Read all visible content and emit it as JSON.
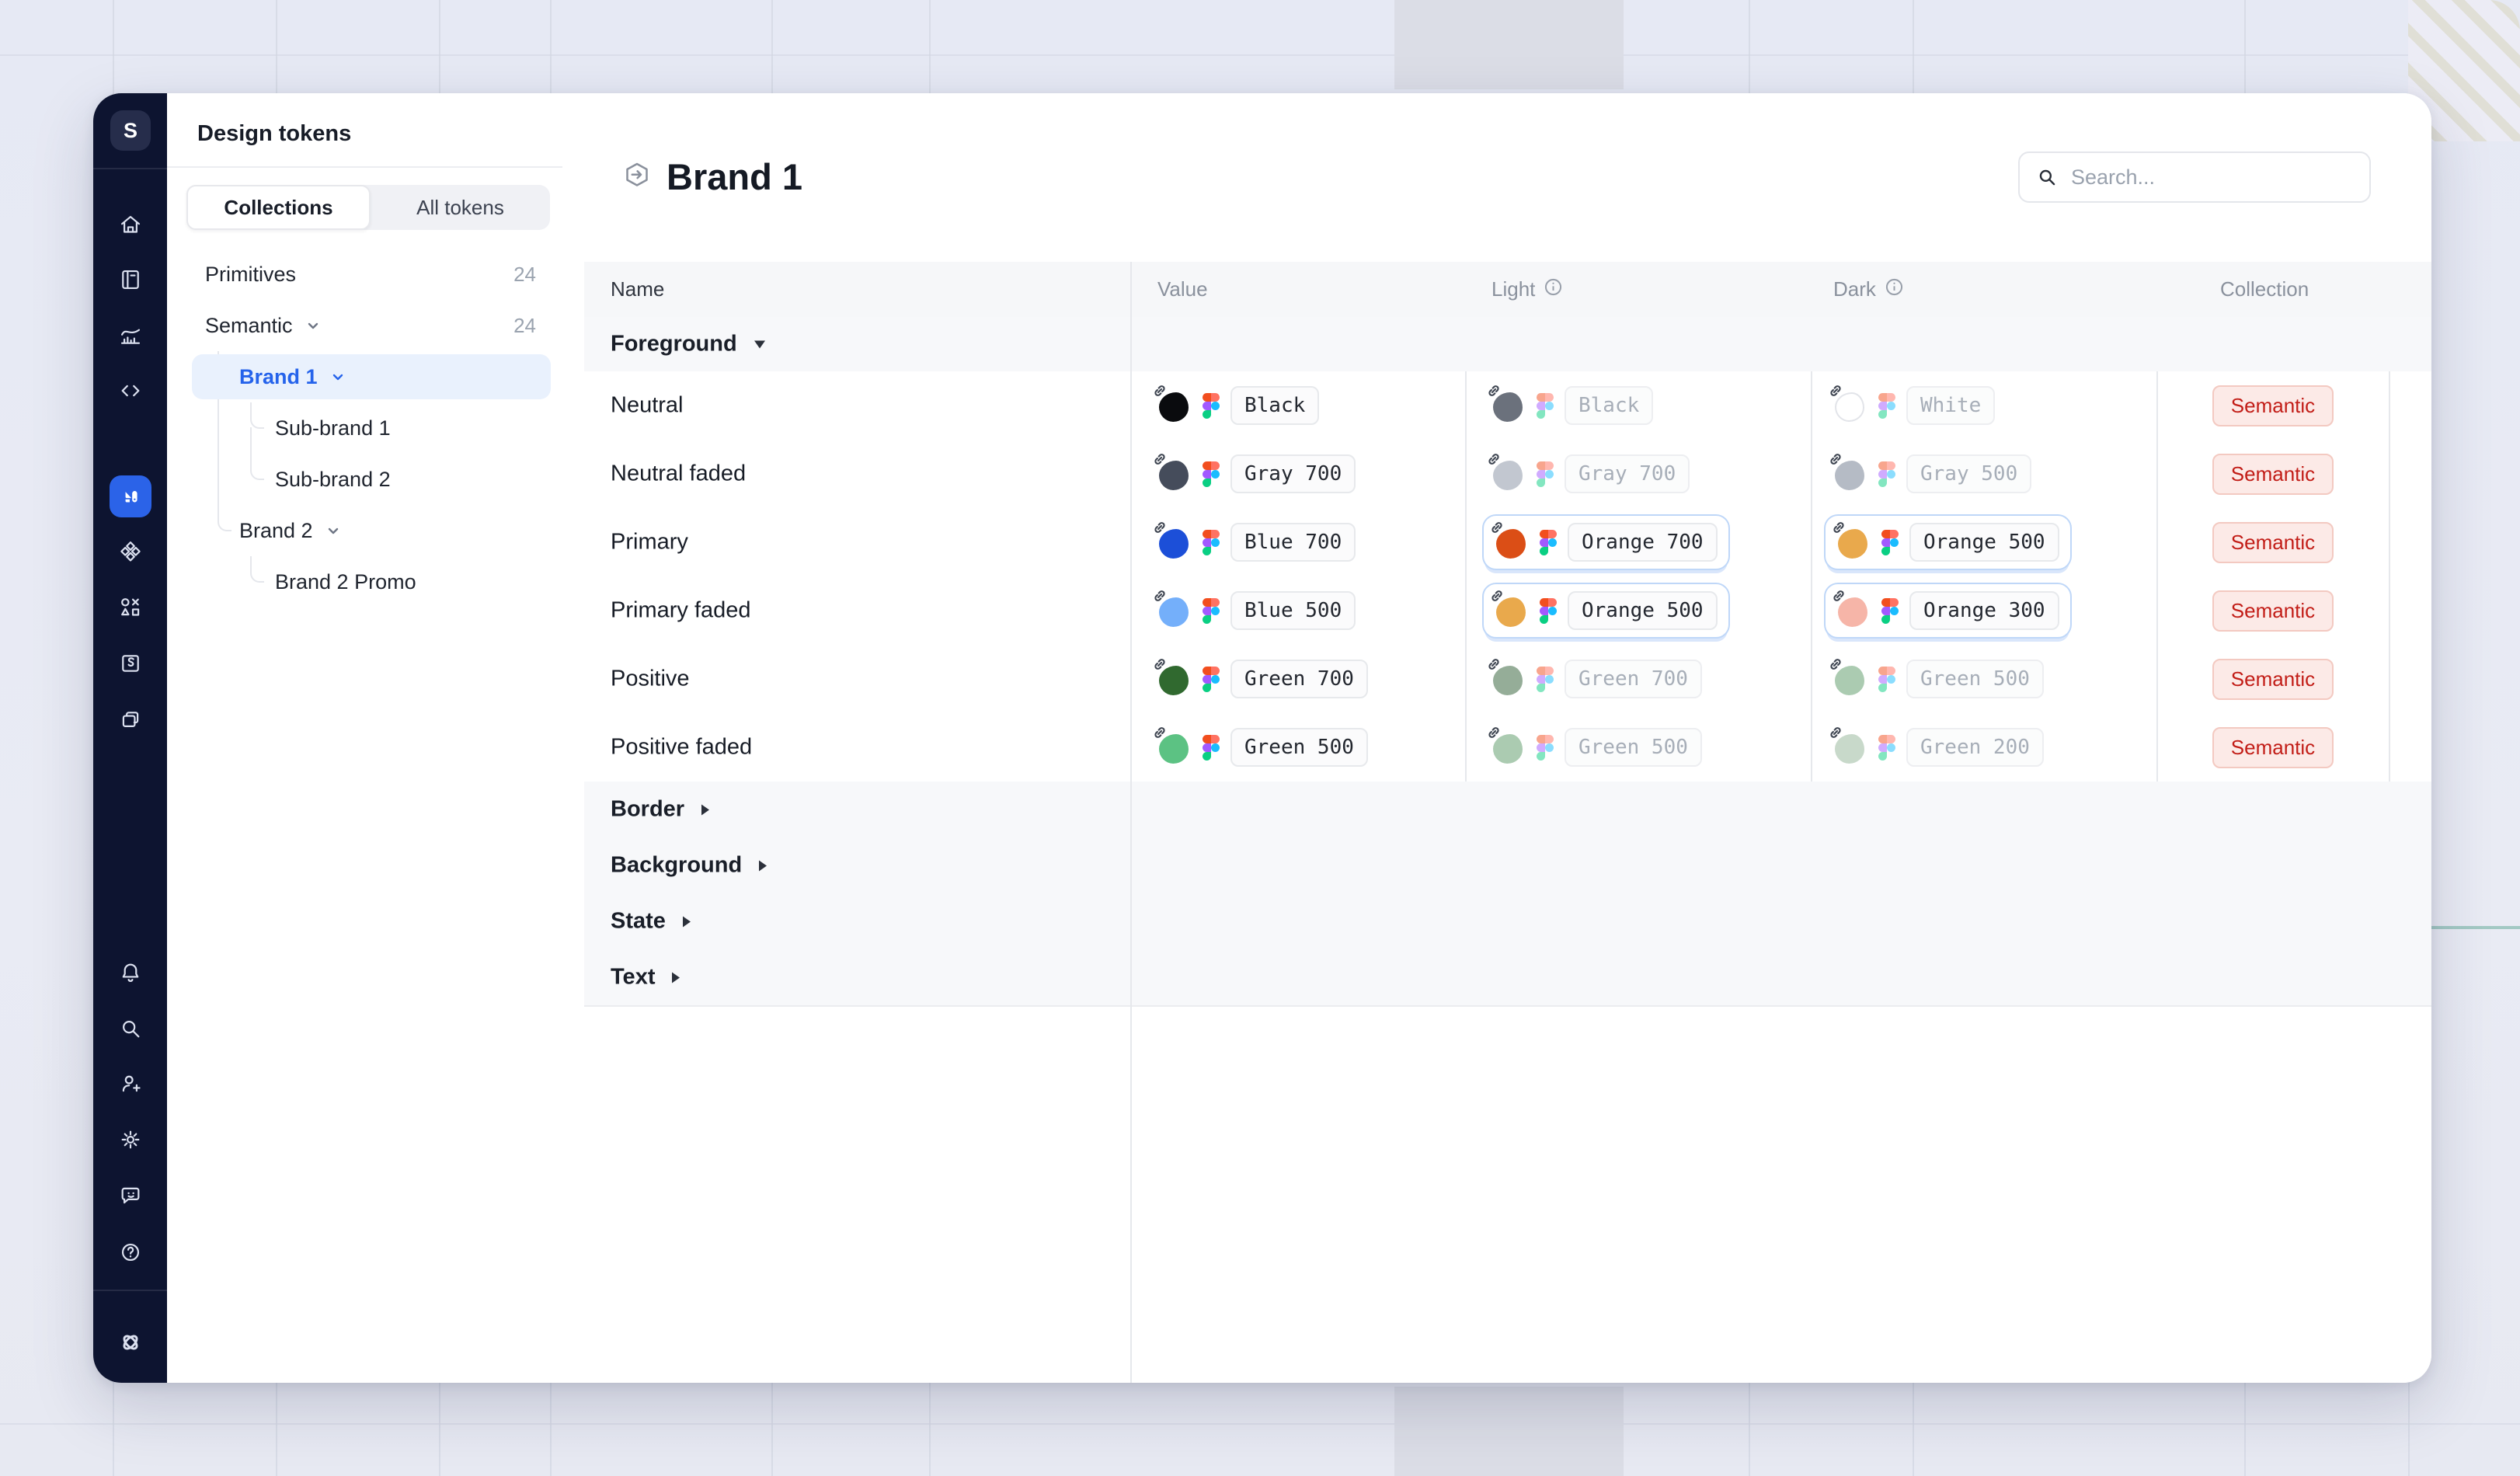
{
  "backdrop": {
    "grid_line_color": "#D3D7E3",
    "hatch_corner": "top-right",
    "teal_accent_color": "#A3C9C4"
  },
  "sidebar": {
    "logo_letter": "S",
    "active_color": "#2B63E8",
    "nav_icons": [
      "home-icon",
      "docs-icon",
      "analytics-icon",
      "code-icon",
      "tokens-icon",
      "components-icon",
      "shapes-icon",
      "stories-icon",
      "pages-icon"
    ],
    "utility_icons": [
      "bell-icon",
      "search-icon",
      "invite-user-icon",
      "settings-icon",
      "feedback-icon",
      "help-icon"
    ],
    "footer_icon": "supernova-logo"
  },
  "panel": {
    "title": "Design tokens",
    "tabs": [
      {
        "label": "Collections",
        "active": true
      },
      {
        "label": "All tokens",
        "active": false
      }
    ],
    "tree": [
      {
        "label": "Primitives",
        "count": "24"
      },
      {
        "label": "Semantic",
        "count": "24",
        "expanded": true
      },
      {
        "label": "Brand 1",
        "selected": true,
        "expanded": true
      },
      {
        "label": "Sub-brand 1"
      },
      {
        "label": "Sub-brand 2"
      },
      {
        "label": "Brand 2",
        "expanded": true
      },
      {
        "label": "Brand 2 Promo"
      }
    ]
  },
  "main": {
    "title": "Brand 1",
    "title_icon": "hexagon-arrow-icon",
    "search": {
      "placeholder": "Search..."
    },
    "table": {
      "headers": {
        "name": "Name",
        "value": "Value",
        "light": "Light",
        "dark": "Dark",
        "collection": "Collection"
      },
      "rows": [
        {
          "type": "group",
          "label": "Foreground",
          "expanded": true
        },
        {
          "type": "token",
          "name": "Neutral",
          "value": {
            "label": "Black",
            "color": "#0A0B0E"
          },
          "light": {
            "label": "Black",
            "color": "#6B717C",
            "faded": true
          },
          "dark": {
            "label": "White",
            "color": "#FFFFFF",
            "faded": true,
            "outlined": true
          },
          "collection": "Semantic"
        },
        {
          "type": "token",
          "name": "Neutral faded",
          "value": {
            "label": "Gray 700",
            "color": "#454C5B"
          },
          "light": {
            "label": "Gray 700",
            "color": "#C2C7D0",
            "faded": true
          },
          "dark": {
            "label": "Gray 500",
            "color": "#B5BBC5",
            "faded": true
          },
          "collection": "Semantic"
        },
        {
          "type": "token",
          "name": "Primary",
          "value": {
            "label": "Blue 700",
            "color": "#1C4FD8"
          },
          "light": {
            "label": "Orange 700",
            "color": "#DB4E16",
            "highlighted": true
          },
          "dark": {
            "label": "Orange 500",
            "color": "#E9A94C",
            "highlighted": true
          },
          "collection": "Semantic"
        },
        {
          "type": "token",
          "name": "Primary faded",
          "value": {
            "label": "Blue 500",
            "color": "#74AFFA"
          },
          "light": {
            "label": "Orange 500",
            "color": "#E9A94C",
            "highlighted": true
          },
          "dark": {
            "label": "Orange 300",
            "color": "#F6B5A8",
            "highlighted": true
          },
          "collection": "Semantic"
        },
        {
          "type": "token",
          "name": "Positive",
          "value": {
            "label": "Green 700",
            "color": "#30692F"
          },
          "light": {
            "label": "Green 700",
            "color": "#95AD98",
            "faded": true
          },
          "dark": {
            "label": "Green 500",
            "color": "#ABCBB1",
            "faded": true
          },
          "collection": "Semantic"
        },
        {
          "type": "token",
          "name": "Positive faded",
          "value": {
            "label": "Green 500",
            "color": "#5CC283"
          },
          "light": {
            "label": "Green 500",
            "color": "#ABCBB1",
            "faded": true
          },
          "dark": {
            "label": "Green 200",
            "color": "#C8D9CA",
            "faded": true
          },
          "collection": "Semantic"
        },
        {
          "type": "group",
          "label": "Border",
          "expanded": false
        },
        {
          "type": "group",
          "label": "Background",
          "expanded": false
        },
        {
          "type": "group",
          "label": "State",
          "expanded": false
        },
        {
          "type": "group",
          "label": "Text",
          "expanded": false
        }
      ]
    }
  },
  "colors": {
    "sidebar_bg": "#0D1430",
    "accent_blue": "#2563EB",
    "selected_tree_bg": "#E9F1FD",
    "badge_bg": "#FCEAE7",
    "badge_border": "#F3C9C1",
    "badge_text": "#C21D17",
    "highlight_ring": "#BFD7F8"
  }
}
